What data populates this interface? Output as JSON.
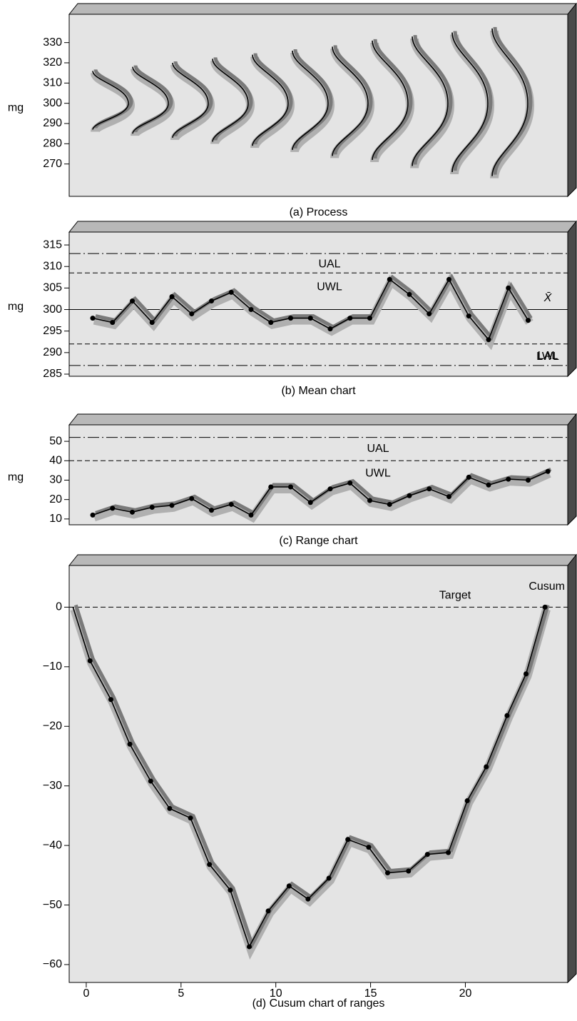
{
  "chart_data": [
    {
      "type": "process",
      "title": "(a) Process",
      "ylabel": "mg",
      "ylim": [
        254,
        344
      ],
      "yticks": [
        270,
        280,
        290,
        300,
        310,
        320,
        330
      ],
      "mean": 300,
      "lows": [
        287,
        285,
        283,
        281,
        279,
        277,
        274,
        272,
        269,
        266,
        264
      ],
      "highs": [
        316,
        318,
        320,
        322,
        324,
        326,
        328,
        331,
        333,
        335,
        337
      ]
    },
    {
      "type": "line",
      "title": "(b) Mean chart",
      "ylabel": "mg",
      "ylim": [
        284.5,
        318
      ],
      "yticks": [
        285,
        290,
        295,
        300,
        305,
        310,
        315
      ],
      "lines": [
        {
          "label": "UAL",
          "value": 313,
          "style": "dashdot"
        },
        {
          "label": "UWL",
          "value": 308.5,
          "style": "dashed"
        },
        {
          "label": "X̄",
          "value": 300,
          "style": "solid"
        },
        {
          "label": "LWL",
          "value": 292,
          "style": "dashed"
        },
        {
          "label": "LAL",
          "value": 287,
          "style": "dashdot"
        }
      ],
      "values": [
        298,
        297,
        302,
        297,
        303,
        299,
        302,
        304,
        300,
        297,
        298,
        298,
        295.5,
        298,
        298,
        307,
        303.5,
        299,
        307,
        298.5,
        293,
        305,
        297.5
      ]
    },
    {
      "type": "line",
      "title": "(c) Range chart",
      "ylabel": "mg",
      "ylim": [
        7,
        58.5
      ],
      "yticks": [
        10,
        20,
        30,
        40,
        50
      ],
      "lines": [
        {
          "label": "UAL",
          "value": 52,
          "style": "dashdot"
        },
        {
          "label": "UWL",
          "value": 40,
          "style": "dashed"
        }
      ],
      "values": [
        12,
        15.5,
        13.5,
        16,
        17,
        20.5,
        14.5,
        17.5,
        12,
        26.5,
        26.5,
        18.5,
        25.5,
        28.5,
        19.5,
        17.5,
        22,
        25.5,
        21.5,
        31.5,
        27.5,
        30.5,
        30,
        34.5
      ]
    },
    {
      "type": "cusum",
      "title": "(d) Cusum chart of ranges",
      "xlim": [
        -0.9,
        25.4
      ],
      "xticks": [
        0,
        5,
        10,
        15,
        20
      ],
      "ylim": [
        -63,
        7
      ],
      "yticks": [
        {
          "value": -60,
          "label": "−60"
        },
        {
          "value": -50,
          "label": "−50"
        },
        {
          "value": -40,
          "label": "−40"
        },
        {
          "value": -30,
          "label": "−30"
        },
        {
          "value": -20,
          "label": "−20"
        },
        {
          "value": -10,
          "label": "−10"
        },
        0
      ],
      "lines": [
        {
          "label": "Target",
          "value": 0,
          "style": "dashed"
        }
      ],
      "x": [
        -0.7,
        0.2,
        1.3,
        2.3,
        3.4,
        4.4,
        5.5,
        6.5,
        7.6,
        8.6,
        9.6,
        10.7,
        11.7,
        12.8,
        13.8,
        14.9,
        15.9,
        17.0,
        18.0,
        19.1,
        20.1,
        21.1,
        22.2,
        23.2,
        24.2
      ],
      "series": [
        {
          "name": "Cusum",
          "values": [
            0,
            -9,
            -15.5,
            -23,
            -29.2,
            -33.8,
            -35.4,
            -43.2,
            -47.5,
            -57,
            -51,
            -46.8,
            -49,
            -45.5,
            -39,
            -40.3,
            -44.6,
            -44.3,
            -41.5,
            -41.2,
            -32.5,
            -26.8,
            -18.2,
            -11.2,
            0
          ]
        }
      ]
    }
  ]
}
